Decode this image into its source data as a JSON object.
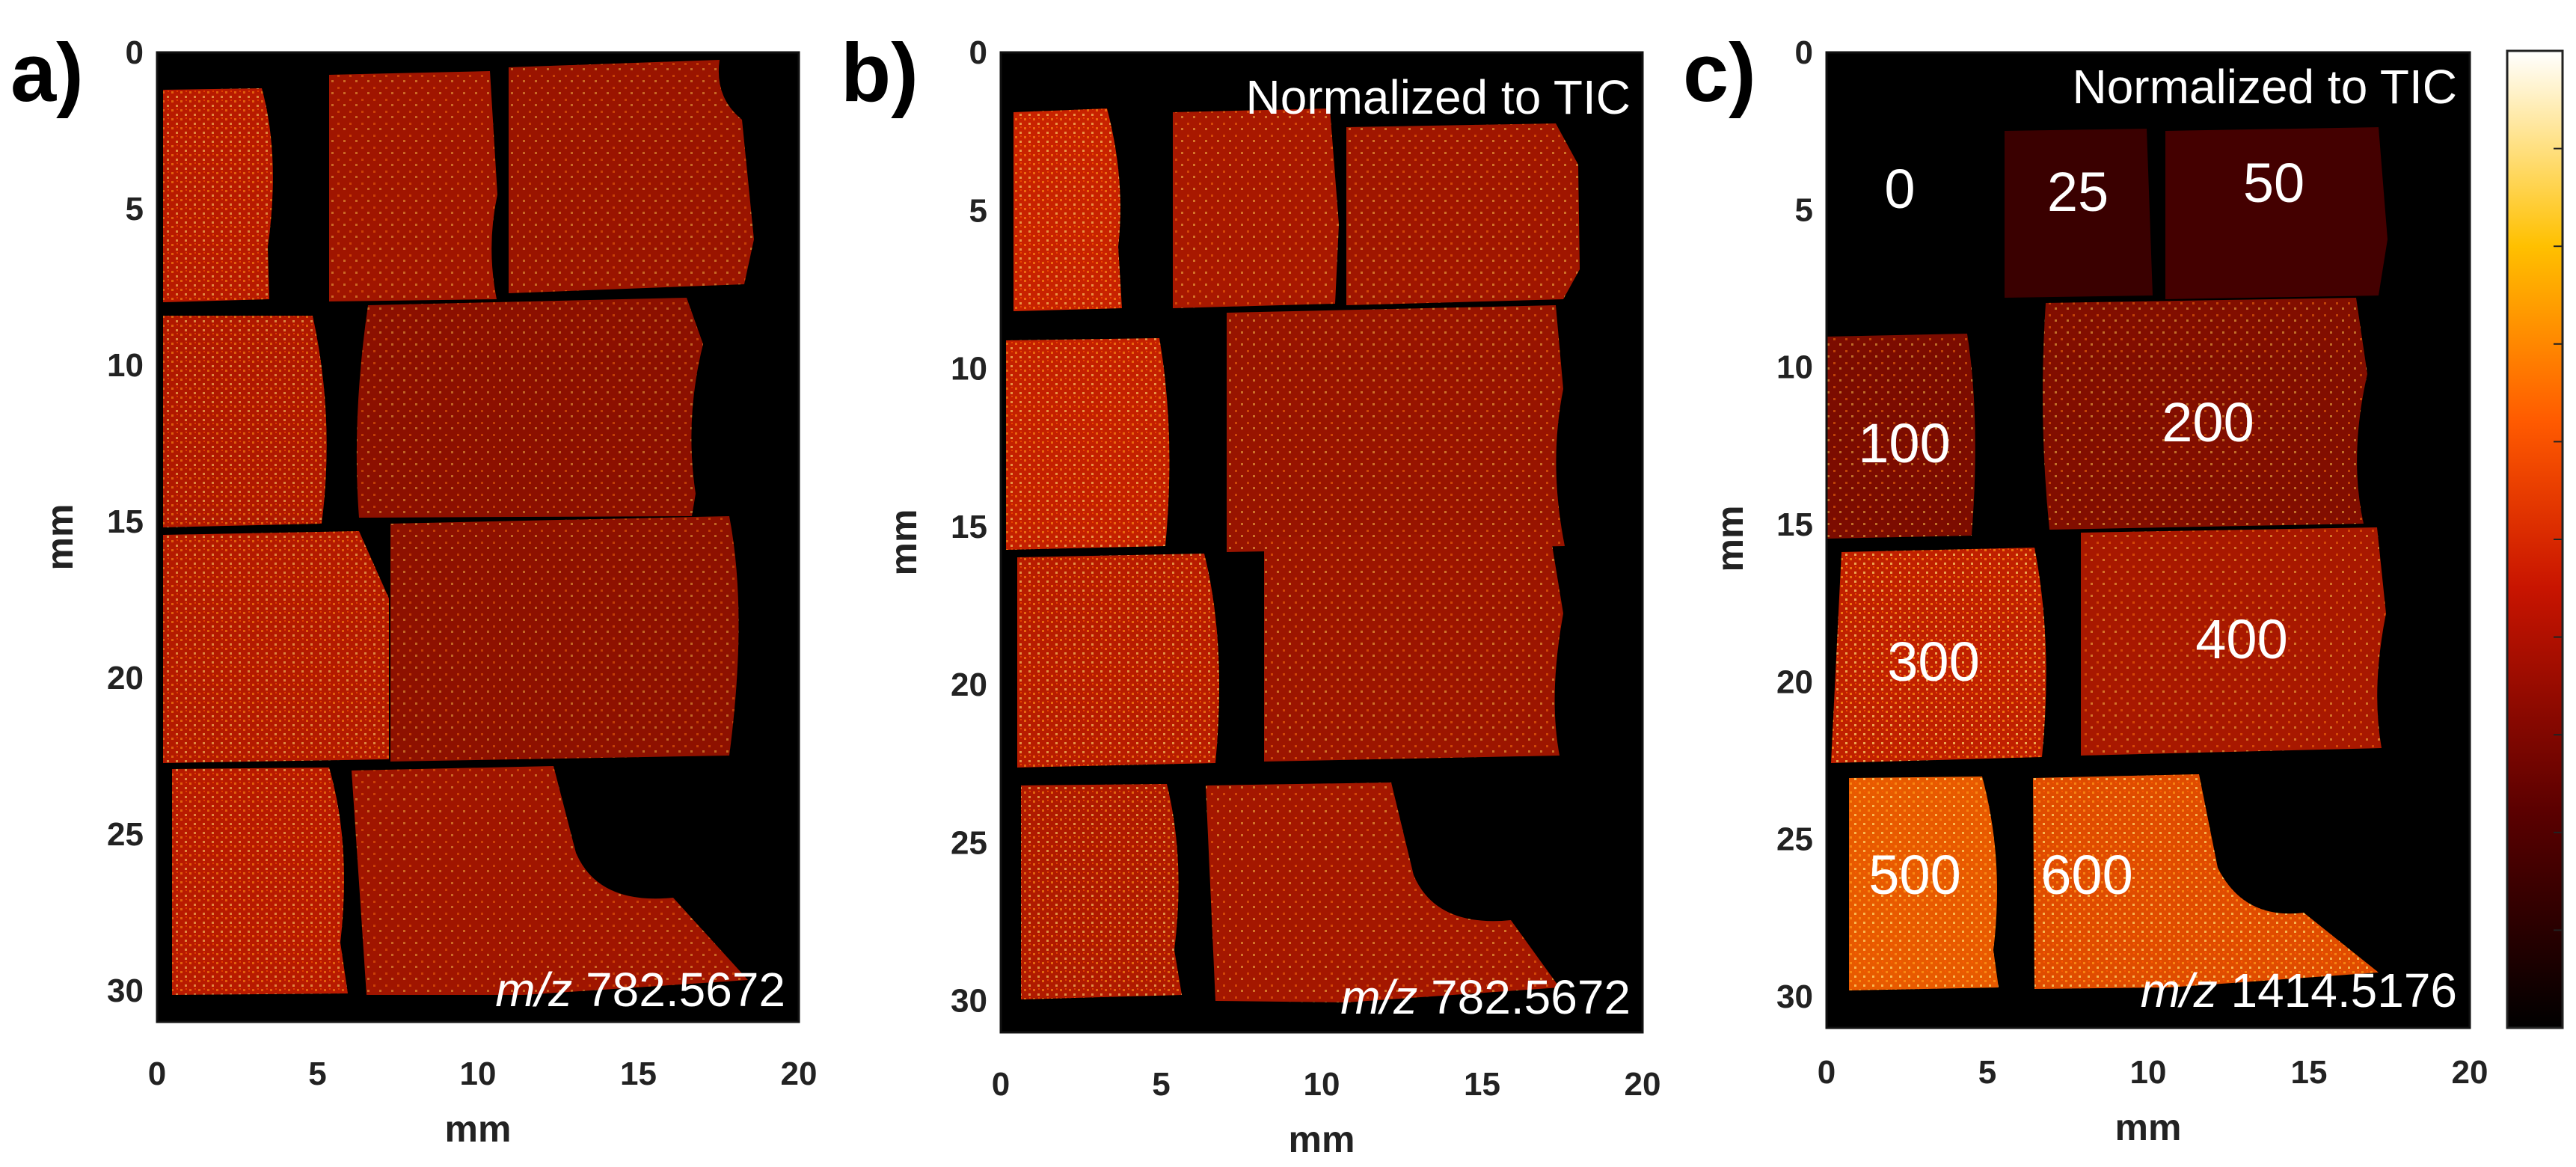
{
  "chart_data": [
    {
      "type": "heatmap",
      "panel_label": "a)",
      "xlabel": "mm",
      "ylabel": "mm",
      "xlim": [
        0,
        20
      ],
      "ylim": [
        0,
        31
      ],
      "x_ticks": [
        "0",
        "5",
        "10",
        "15",
        "20"
      ],
      "y_ticks": [
        "0",
        "5",
        "10",
        "15",
        "20",
        "25",
        "30"
      ],
      "normalization_note": "",
      "mz_prefix": "m/z",
      "mz_value": "782.5672",
      "concentration_labels": []
    },
    {
      "type": "heatmap",
      "panel_label": "b)",
      "xlabel": "mm",
      "ylabel": "mm",
      "xlim": [
        0,
        20
      ],
      "ylim": [
        0,
        31
      ],
      "x_ticks": [
        "0",
        "5",
        "10",
        "15",
        "20"
      ],
      "y_ticks": [
        "0",
        "5",
        "10",
        "15",
        "20",
        "25",
        "30"
      ],
      "normalization_note": "Normalized to TIC",
      "mz_prefix": "m/z",
      "mz_value": "782.5672",
      "concentration_labels": []
    },
    {
      "type": "heatmap",
      "panel_label": "c)",
      "xlabel": "mm",
      "ylabel": "mm",
      "xlim": [
        0,
        20
      ],
      "ylim": [
        0,
        31
      ],
      "x_ticks": [
        "0",
        "5",
        "10",
        "15",
        "20"
      ],
      "y_ticks": [
        "0",
        "5",
        "10",
        "15",
        "20",
        "25",
        "30"
      ],
      "normalization_note": "Normalized to TIC",
      "mz_prefix": "m/z",
      "mz_value": "1414.5176",
      "concentration_labels": [
        "0",
        "25",
        "50",
        "100",
        "200",
        "300",
        "400",
        "500",
        "600"
      ]
    }
  ],
  "colorbar": {
    "colormap": "hot",
    "colors": [
      "#000000",
      "#6e0000",
      "#d41a00",
      "#ff6a00",
      "#ffc400",
      "#ffffff"
    ]
  }
}
